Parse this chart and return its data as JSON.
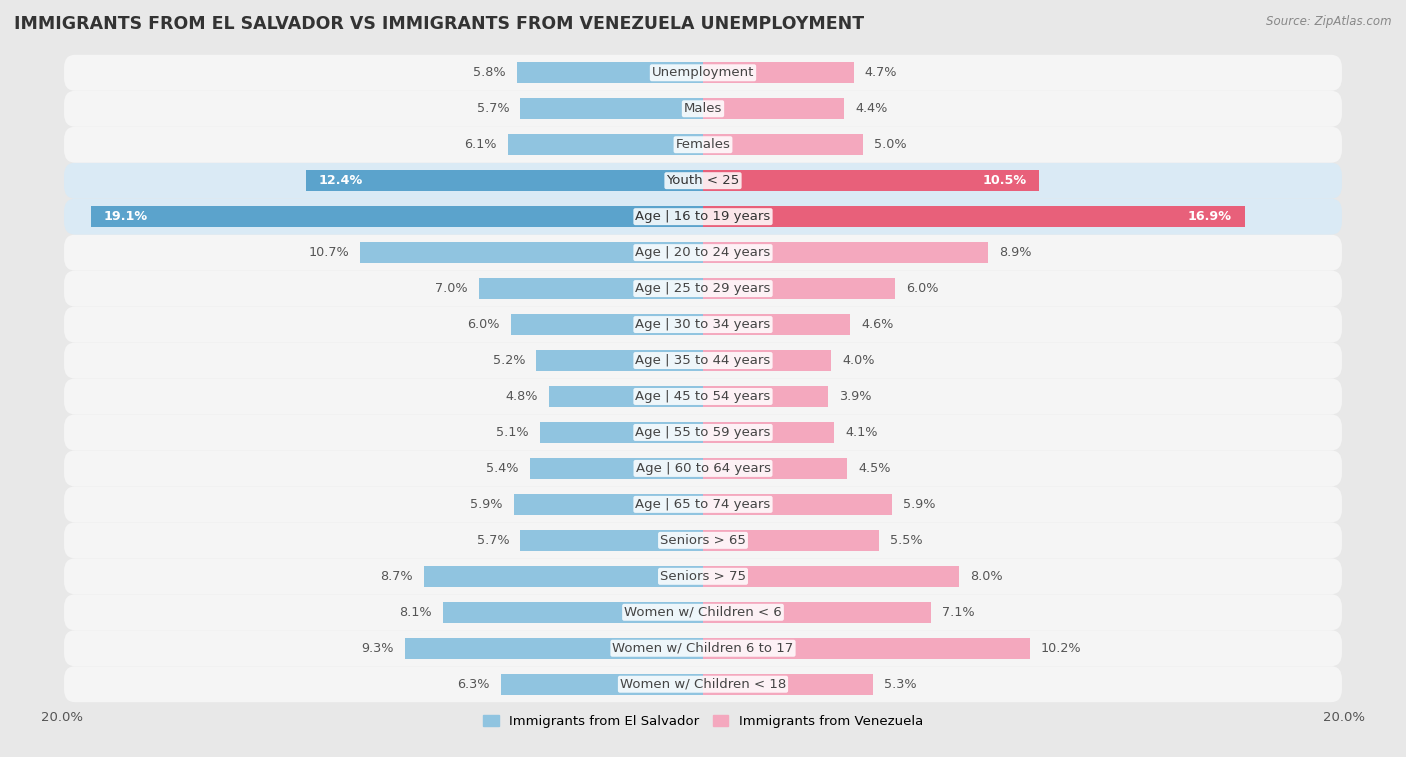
{
  "title": "IMMIGRANTS FROM EL SALVADOR VS IMMIGRANTS FROM VENEZUELA UNEMPLOYMENT",
  "source": "Source: ZipAtlas.com",
  "categories": [
    "Unemployment",
    "Males",
    "Females",
    "Youth < 25",
    "Age | 16 to 19 years",
    "Age | 20 to 24 years",
    "Age | 25 to 29 years",
    "Age | 30 to 34 years",
    "Age | 35 to 44 years",
    "Age | 45 to 54 years",
    "Age | 55 to 59 years",
    "Age | 60 to 64 years",
    "Age | 65 to 74 years",
    "Seniors > 65",
    "Seniors > 75",
    "Women w/ Children < 6",
    "Women w/ Children 6 to 17",
    "Women w/ Children < 18"
  ],
  "el_salvador": [
    5.8,
    5.7,
    6.1,
    12.4,
    19.1,
    10.7,
    7.0,
    6.0,
    5.2,
    4.8,
    5.1,
    5.4,
    5.9,
    5.7,
    8.7,
    8.1,
    9.3,
    6.3
  ],
  "venezuela": [
    4.7,
    4.4,
    5.0,
    10.5,
    16.9,
    8.9,
    6.0,
    4.6,
    4.0,
    3.9,
    4.1,
    4.5,
    5.9,
    5.5,
    8.0,
    7.1,
    10.2,
    5.3
  ],
  "el_salvador_color": "#90C4E0",
  "venezuela_color": "#F4A8BE",
  "el_salvador_highlight_color": "#5BA3CC",
  "venezuela_highlight_color": "#E8607A",
  "highlight_rows": [
    3,
    4
  ],
  "xlim": 20.0,
  "bar_height": 0.58,
  "bg_color": "#e8e8e8",
  "row_bg_white": "#f5f5f5",
  "label_color": "#444444",
  "value_label_color": "#555555",
  "label_fontsize": 9.5,
  "value_fontsize": 9.2,
  "title_fontsize": 12.5,
  "legend_label_salvador": "Immigrants from El Salvador",
  "legend_label_venezuela": "Immigrants from Venezuela"
}
